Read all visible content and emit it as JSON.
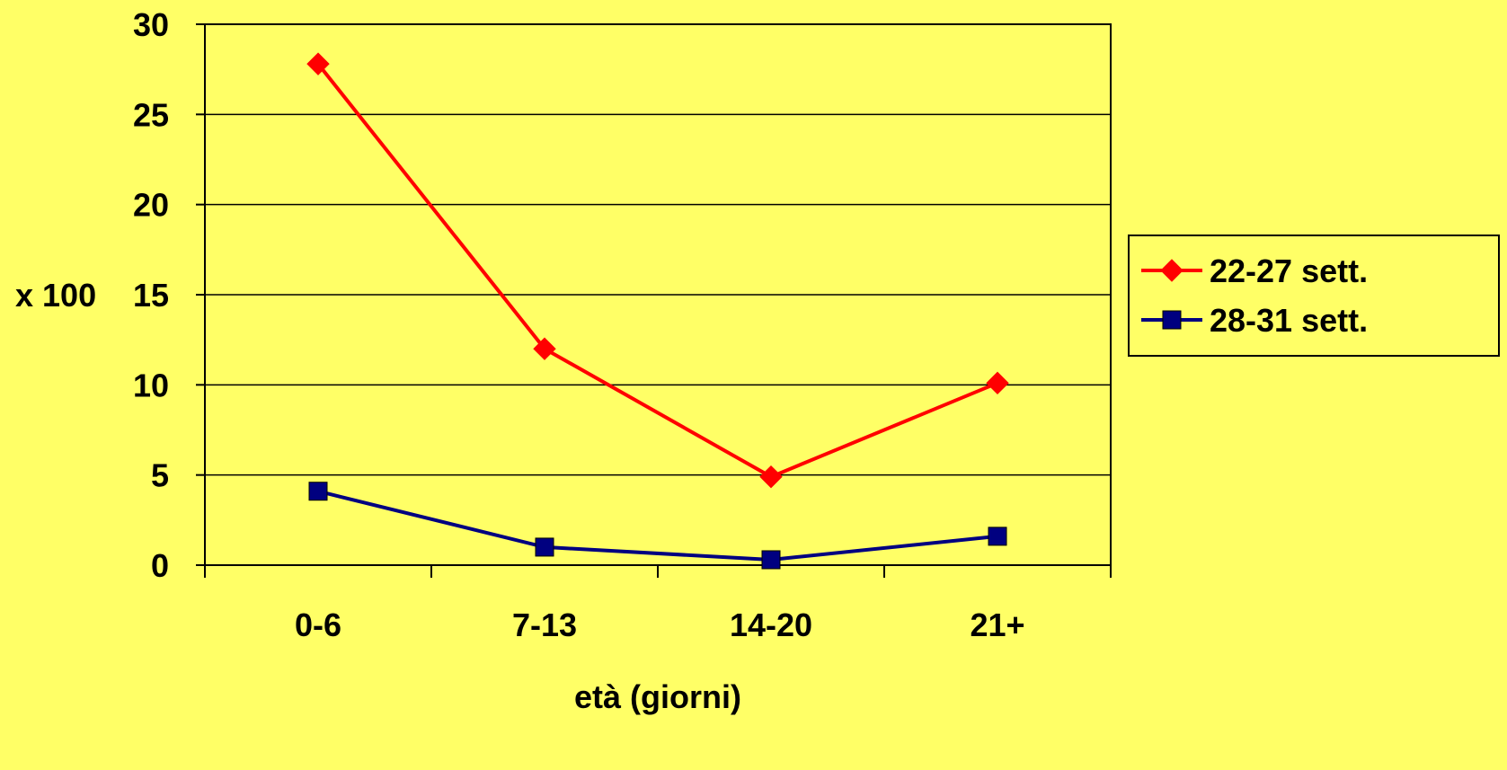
{
  "chart_data": {
    "type": "line",
    "title": "",
    "xlabel": "età (giorni)",
    "ylabel": "x 100",
    "ylim": [
      0,
      30
    ],
    "yticks": [
      "0",
      "5",
      "10",
      "15",
      "20",
      "25",
      "30"
    ],
    "grid": true,
    "legend_position": "right",
    "categories": [
      "0-6",
      "7-13",
      "14-20",
      "21+"
    ],
    "series": [
      {
        "name": "22-27 sett.",
        "color": "#FF0000",
        "marker": "diamond",
        "values": [
          27.8,
          12.0,
          4.9,
          10.1
        ]
      },
      {
        "name": "28-31 sett.",
        "color": "#000080",
        "marker": "square",
        "values": [
          4.1,
          1.0,
          0.3,
          1.6
        ]
      }
    ]
  }
}
